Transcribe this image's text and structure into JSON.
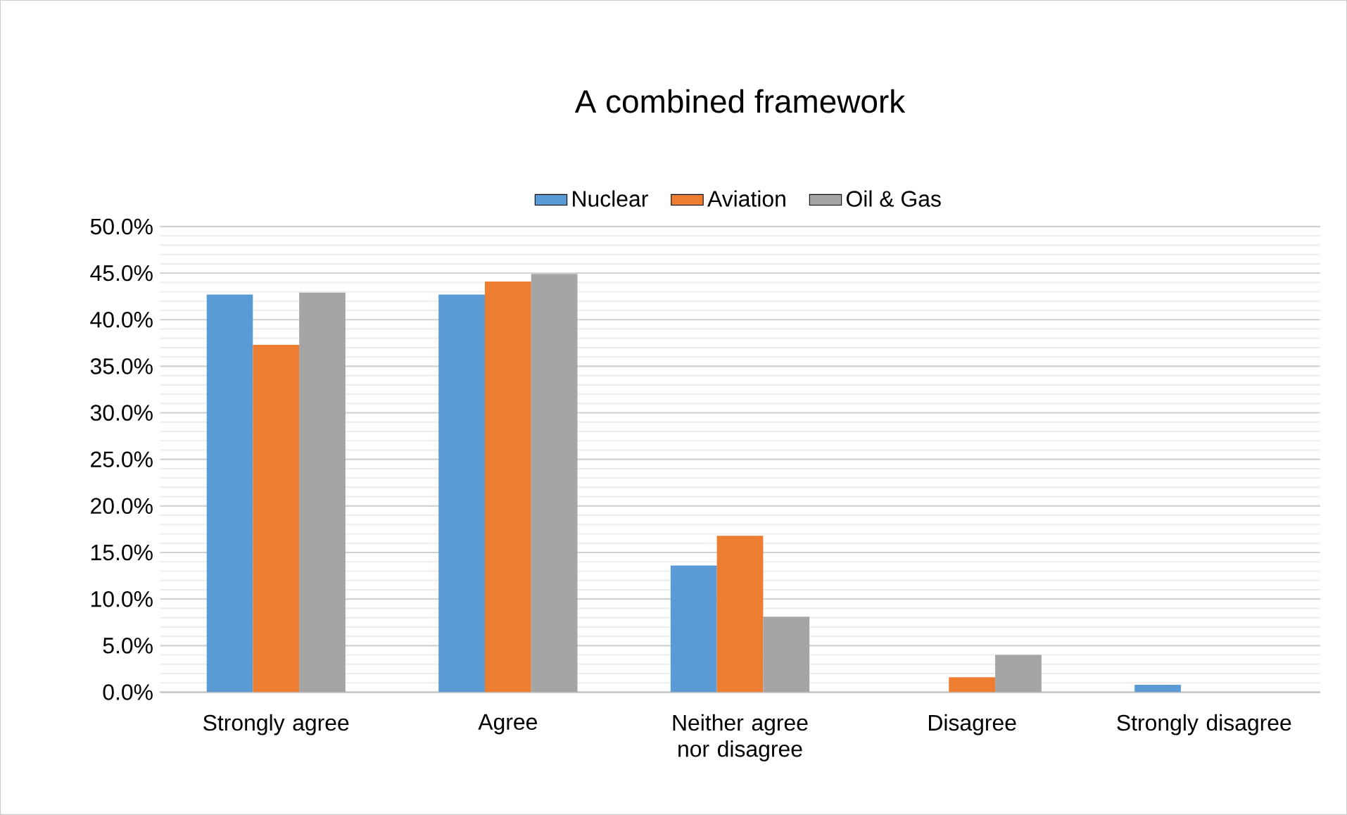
{
  "chart_data": {
    "type": "bar",
    "title": "A combined framework",
    "categories": [
      "Strongly agree",
      "Agree",
      "Neither agree nor disagree",
      "Disagree",
      "Strongly disagree"
    ],
    "series": [
      {
        "name": "Nuclear",
        "color": "#5b9bd5",
        "values": [
          42.7,
          42.7,
          13.6,
          0,
          0.8
        ]
      },
      {
        "name": "Aviation",
        "color": "#ed7d31",
        "values": [
          37.3,
          44.1,
          16.8,
          1.6,
          0
        ]
      },
      {
        "name": "Oil & Gas",
        "color": "#a5a5a5",
        "values": [
          42.9,
          44.9,
          8.1,
          4.0,
          0
        ]
      }
    ],
    "ylim": [
      0,
      50
    ],
    "yticks": [
      {
        "value": 0,
        "label": "0.0%"
      },
      {
        "value": 5,
        "label": "5.0%"
      },
      {
        "value": 10,
        "label": "10.0%"
      },
      {
        "value": 15,
        "label": "15.0%"
      },
      {
        "value": 20,
        "label": "20.0%"
      },
      {
        "value": 25,
        "label": "25.0%"
      },
      {
        "value": 30,
        "label": "30.0%"
      },
      {
        "value": 35,
        "label": "35.0%"
      },
      {
        "value": 40,
        "label": "40.0%"
      },
      {
        "value": 45,
        "label": "45.0%"
      },
      {
        "value": 50,
        "label": "50.0%"
      }
    ],
    "grid": "y",
    "legend": "top"
  }
}
